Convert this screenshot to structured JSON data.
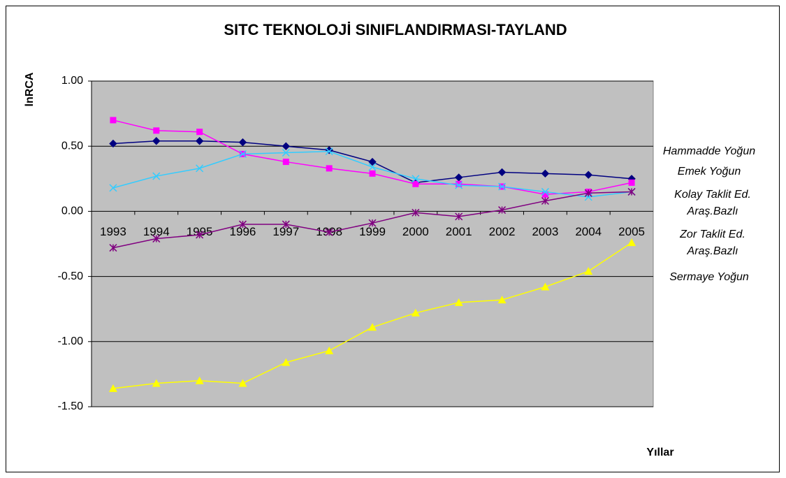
{
  "chart_data": {
    "type": "line",
    "title": "SITC TEKNOLOJİ SINIFLANDIRMASI-TAYLAND",
    "y_label": "lnRCA",
    "x_label": "Yıllar",
    "categories": [
      "1993",
      "1994",
      "1995",
      "1996",
      "1997",
      "1998",
      "1999",
      "2000",
      "2001",
      "2002",
      "2003",
      "2004",
      "2005"
    ],
    "ylim": [
      -1.5,
      1.0
    ],
    "yticks": [
      {
        "value": -1.5,
        "label": "-1.50"
      },
      {
        "value": -1.0,
        "label": "-1.00"
      },
      {
        "value": -0.5,
        "label": "-0.50"
      },
      {
        "value": 0,
        "label": "0.00"
      },
      {
        "value": 0.5,
        "label": "0.50"
      },
      {
        "value": 1.0,
        "label": "1.00"
      }
    ],
    "grid": true,
    "background": "#c0c0c0",
    "legend": "right",
    "series": [
      {
        "name": "Hammadde Yoğun",
        "color": "#000080",
        "marker": "diamond",
        "values": [
          0.52,
          0.54,
          0.54,
          0.53,
          0.5,
          0.47,
          0.38,
          0.22,
          0.26,
          0.3,
          0.29,
          0.28,
          0.25
        ]
      },
      {
        "name": "Emek Yoğun",
        "color": "#ff00ff",
        "marker": "square",
        "values": [
          0.7,
          0.62,
          0.61,
          0.44,
          0.38,
          0.33,
          0.29,
          0.21,
          0.21,
          0.19,
          0.13,
          0.15,
          0.22
        ]
      },
      {
        "name": "Kolay Taklit Ed. Araş.Bazlı",
        "color": "#33ccff",
        "marker": "x",
        "values": [
          0.18,
          0.27,
          0.33,
          0.44,
          0.45,
          0.46,
          0.34,
          0.25,
          0.2,
          0.19,
          0.15,
          0.11,
          0.15
        ]
      },
      {
        "name": "Zor Taklit Ed. Araş.Bazlı",
        "color": "#800080",
        "marker": "star",
        "values": [
          -0.28,
          -0.21,
          -0.18,
          -0.1,
          -0.1,
          -0.16,
          -0.09,
          -0.01,
          -0.04,
          0.01,
          0.08,
          0.14,
          0.15
        ]
      },
      {
        "name": "Sermaye Yoğun",
        "color": "#ffff00",
        "marker": "triangle",
        "values": [
          -1.36,
          -1.32,
          -1.3,
          -1.32,
          -1.16,
          -1.07,
          -0.89,
          -0.78,
          -0.7,
          -0.68,
          -0.58,
          -0.46,
          -0.24
        ]
      }
    ]
  }
}
